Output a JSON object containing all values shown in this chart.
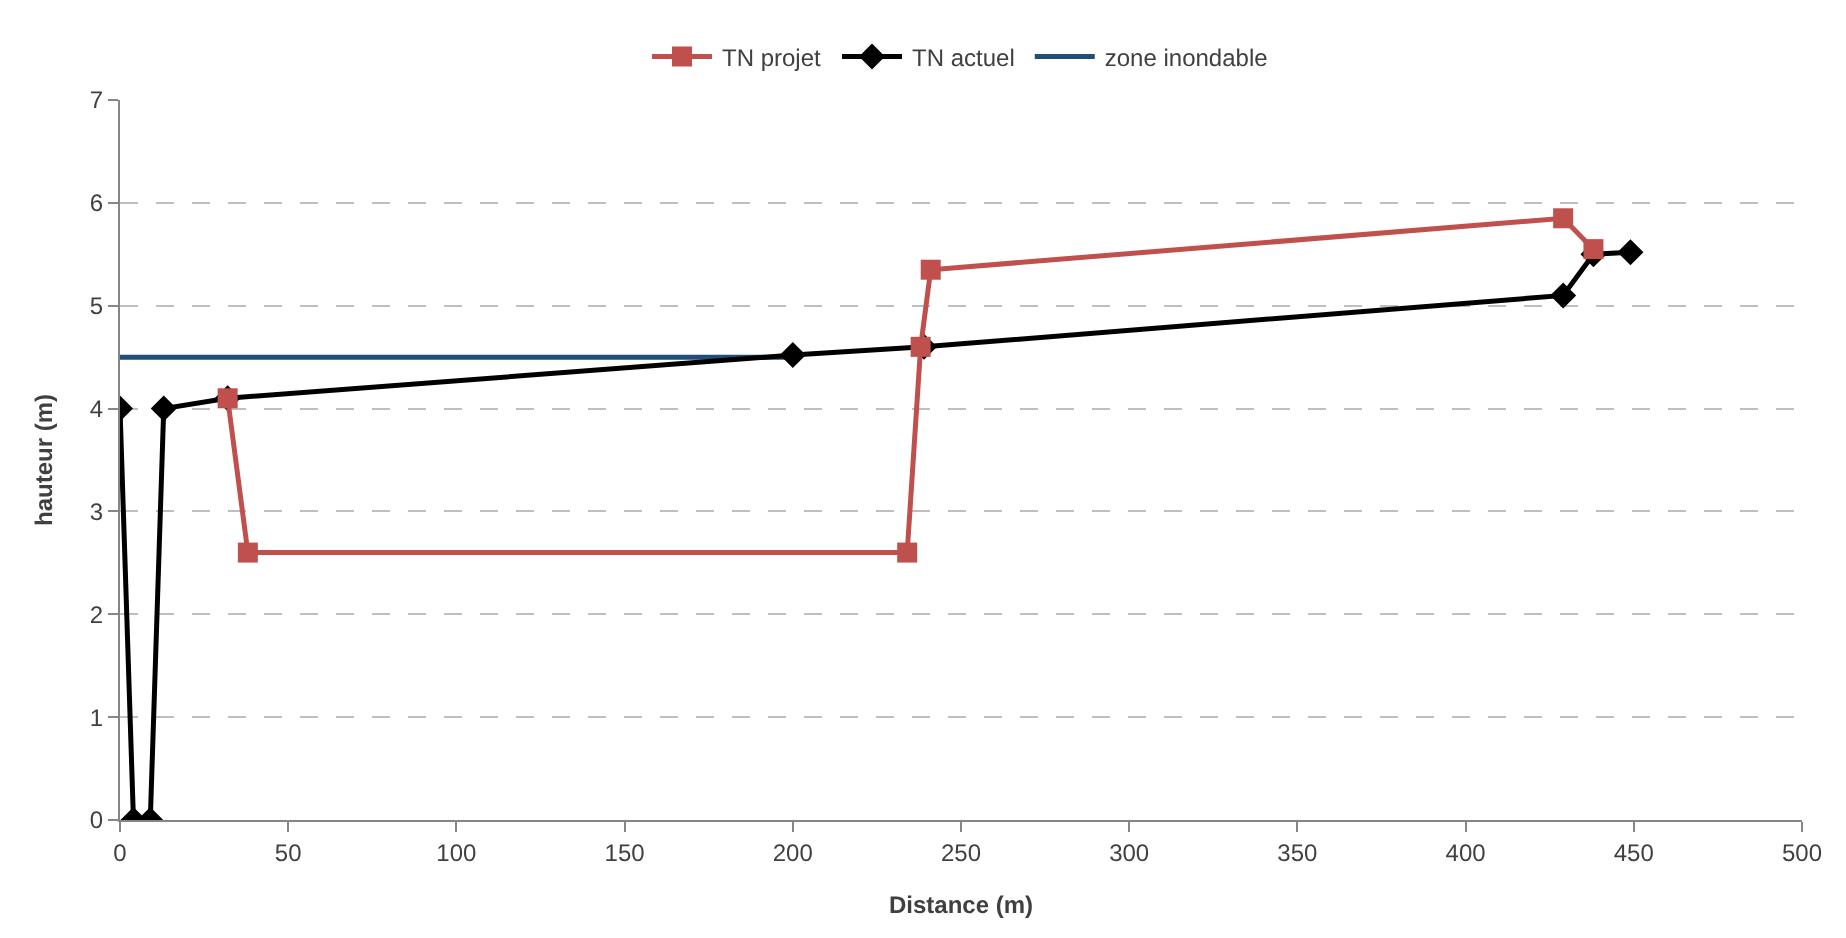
{
  "chart_data": {
    "type": "line",
    "xlabel": "Distance (m)",
    "ylabel": "hauteur (m)",
    "xlim": [
      0,
      500
    ],
    "xticks": [
      0,
      50,
      100,
      150,
      200,
      250,
      300,
      350,
      400,
      450,
      500
    ],
    "ylim": [
      0,
      7
    ],
    "yticks": [
      0,
      1,
      2,
      3,
      4,
      5,
      6,
      7
    ],
    "grid": "y",
    "legend": "top",
    "series": [
      {
        "name": "TN projet",
        "color": "#c0504d",
        "marker": "square",
        "x": [
          32,
          38,
          234,
          238,
          241,
          429,
          438
        ],
        "values": [
          4.1,
          2.6,
          2.6,
          4.6,
          5.35,
          5.85,
          5.55
        ]
      },
      {
        "name": "TN actuel",
        "color": "#000000",
        "marker": "diamond",
        "x": [
          0,
          4,
          9,
          13,
          32,
          200,
          239,
          429,
          438,
          449
        ],
        "values": [
          4,
          0,
          0,
          4,
          4.1,
          4.52,
          4.6,
          5.1,
          5.5,
          5.52
        ]
      },
      {
        "name": "zone inondable",
        "color": "#1f4e79",
        "marker": "none",
        "x": [
          0,
          200
        ],
        "values": [
          4.5,
          4.5
        ]
      }
    ]
  }
}
